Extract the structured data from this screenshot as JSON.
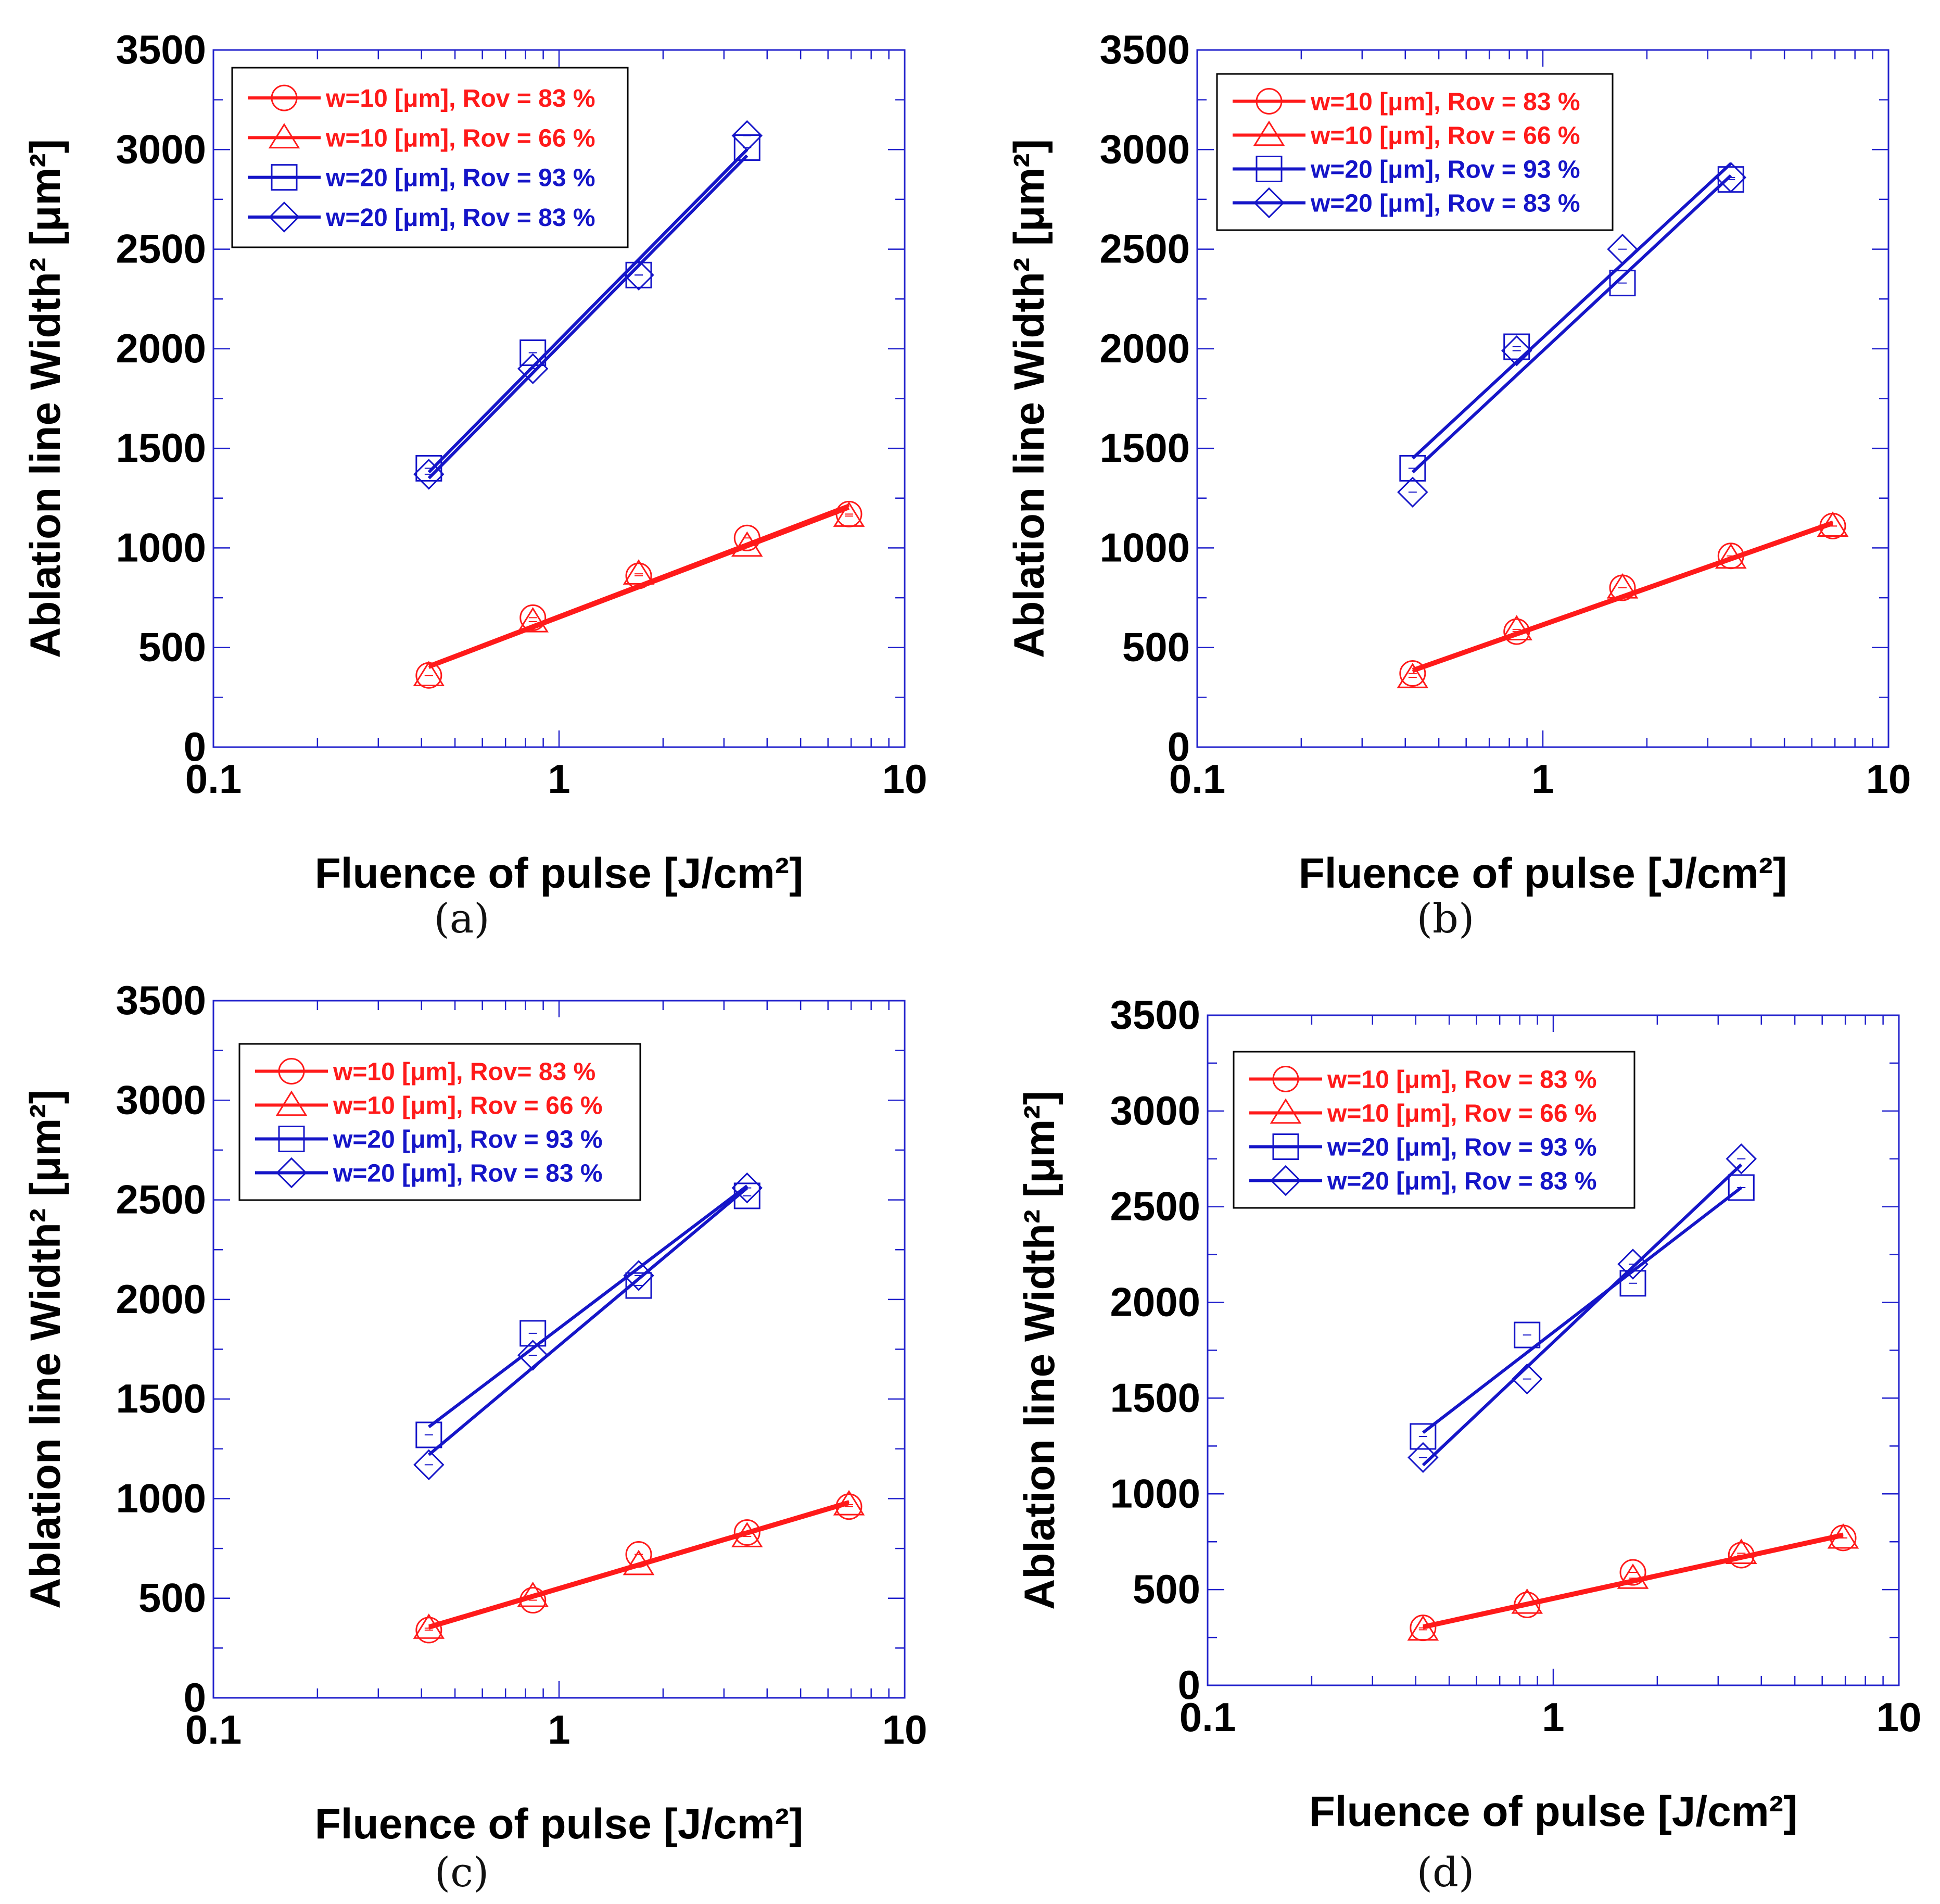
{
  "figure": {
    "captions": [
      "(a)",
      "(b)",
      "(c)",
      "(d)"
    ]
  },
  "colors": {
    "red": "#ff1a1a",
    "blue": "#1515c8",
    "frame": "#2222cc",
    "text": "#000000"
  },
  "chart_data": [
    {
      "panel": "(a)",
      "type": "scatter",
      "xscale": "log",
      "xlim": [
        0.1,
        10
      ],
      "ylim": [
        0,
        3500
      ],
      "xticks": [
        "0.1",
        "1",
        "10"
      ],
      "yticks": [
        "0",
        "500",
        "1000",
        "1500",
        "2000",
        "2500",
        "3000",
        "3500"
      ],
      "xlabel": "Fluence of pulse [J/cm²]",
      "ylabel": "Ablation line Width² [μm²]",
      "legend": [
        "w=10 [μm], Rov = 83 %",
        "w=10 [μm], Rov = 66 %",
        "w=20 [μm], Rov = 93 %",
        "w=20 [μm], Rov = 83 %"
      ],
      "series": [
        {
          "name": "w=10 [μm], Rov = 83 %",
          "color": "red",
          "marker": "circle",
          "x": [
            0.42,
            0.84,
            1.7,
            3.5,
            6.9
          ],
          "y": [
            360,
            650,
            860,
            1050,
            1170
          ],
          "fit": {
            "x": [
              0.42,
              6.9
            ],
            "y": [
              410,
              1215
            ]
          }
        },
        {
          "name": "w=10 [μm], Rov = 66 %",
          "color": "red",
          "marker": "triangle",
          "x": [
            0.42,
            0.84,
            1.7,
            3.5,
            6.9
          ],
          "y": [
            360,
            630,
            870,
            1010,
            1160
          ],
          "fit": {
            "x": [
              0.42,
              6.9
            ],
            "y": [
              400,
              1200
            ]
          }
        },
        {
          "name": "w=20 [μm], Rov = 93 %",
          "color": "blue",
          "marker": "square",
          "x": [
            0.42,
            0.84,
            1.7,
            3.5
          ],
          "y": [
            1400,
            1980,
            2370,
            3010
          ],
          "fit": {
            "x": [
              0.42,
              3.5
            ],
            "y": [
              1380,
              3000
            ]
          }
        },
        {
          "name": "w=20 [μm], Rov = 83 %",
          "color": "blue",
          "marker": "diamond",
          "x": [
            0.42,
            0.84,
            1.7,
            3.5
          ],
          "y": [
            1370,
            1900,
            2370,
            3070
          ],
          "fit": {
            "x": [
              0.42,
              3.5
            ],
            "y": [
              1350,
              2970
            ]
          }
        }
      ]
    },
    {
      "panel": "(b)",
      "type": "scatter",
      "xscale": "log",
      "xlim": [
        0.1,
        10
      ],
      "ylim": [
        0,
        3500
      ],
      "xticks": [
        "0.1",
        "1",
        "10"
      ],
      "yticks": [
        "0",
        "500",
        "1000",
        "1500",
        "2000",
        "2500",
        "3000",
        "3500"
      ],
      "xlabel": "Fluence of pulse [J/cm²]",
      "ylabel": "Ablation line Width² [μm²]",
      "legend": [
        "w=10 [μm], Rov = 83 %",
        "w=10 [μm], Rov = 66 %",
        "w=20 [μm], Rov = 93 %",
        "w=20 [μm], Rov = 83 %"
      ],
      "series": [
        {
          "name": "w=10 [μm], Rov = 83 %",
          "color": "red",
          "marker": "circle",
          "x": [
            0.42,
            0.84,
            1.7,
            3.5,
            6.9
          ],
          "y": [
            370,
            580,
            800,
            960,
            1110
          ],
          "fit": {
            "x": [
              0.42,
              6.9
            ],
            "y": [
              390,
              1130
            ]
          }
        },
        {
          "name": "w=10 [μm], Rov = 66 %",
          "color": "red",
          "marker": "triangle",
          "x": [
            0.42,
            0.84,
            1.7,
            3.5,
            6.9
          ],
          "y": [
            350,
            590,
            800,
            950,
            1110
          ],
          "fit": {
            "x": [
              0.42,
              6.9
            ],
            "y": [
              380,
              1120
            ]
          }
        },
        {
          "name": "w=20 [μm], Rov = 93 %",
          "color": "blue",
          "marker": "square",
          "x": [
            0.42,
            0.84,
            1.7,
            3.5
          ],
          "y": [
            1400,
            2010,
            2330,
            2850
          ],
          "fit": {
            "x": [
              0.42,
              3.5
            ],
            "y": [
              1450,
              2930
            ]
          }
        },
        {
          "name": "w=20 [μm], Rov = 83 %",
          "color": "blue",
          "marker": "diamond",
          "x": [
            0.42,
            0.84,
            1.7,
            3.5
          ],
          "y": [
            1280,
            1990,
            2500,
            2860
          ],
          "fit": {
            "x": [
              0.42,
              3.5
            ],
            "y": [
              1380,
              2870
            ]
          }
        }
      ]
    },
    {
      "panel": "(c)",
      "type": "scatter",
      "xscale": "log",
      "xlim": [
        0.1,
        10
      ],
      "ylim": [
        0,
        3500
      ],
      "xticks": [
        "0.1",
        "1",
        "10"
      ],
      "yticks": [
        "0",
        "500",
        "1000",
        "1500",
        "2000",
        "2500",
        "3000",
        "3500"
      ],
      "xlabel": "Fluence of pulse [J/cm²]",
      "ylabel": "Ablation line Width² [μm²]",
      "legend": [
        "w=10 [μm], Rov= 83 %",
        "w=10 [μm], Rov = 66 %",
        "w=20 [μm], Rov = 93 %",
        "w=20 [μm], Rov = 83 %"
      ],
      "series": [
        {
          "name": "w=10 [μm], Rov= 83 %",
          "color": "red",
          "marker": "circle",
          "x": [
            0.42,
            0.84,
            1.7,
            3.5,
            6.9
          ],
          "y": [
            340,
            490,
            720,
            830,
            960
          ],
          "fit": {
            "x": [
              0.42,
              6.9
            ],
            "y": [
              350,
              975
            ]
          }
        },
        {
          "name": "w=10 [μm], Rov = 66 %",
          "color": "red",
          "marker": "triangle",
          "x": [
            0.42,
            0.84,
            1.7,
            3.5,
            6.9
          ],
          "y": [
            350,
            510,
            670,
            810,
            970
          ],
          "fit": {
            "x": [
              0.42,
              6.9
            ],
            "y": [
              360,
              985
            ]
          }
        },
        {
          "name": "w=20 [μm], Rov = 93 %",
          "color": "blue",
          "marker": "square",
          "x": [
            0.42,
            0.84,
            1.7,
            3.5
          ],
          "y": [
            1320,
            1830,
            2070,
            2520
          ],
          "fit": {
            "x": [
              0.42,
              3.5
            ],
            "y": [
              1360,
              2570
            ]
          }
        },
        {
          "name": "w=20 [μm], Rov = 83 %",
          "color": "blue",
          "marker": "diamond",
          "x": [
            0.42,
            0.84,
            1.7,
            3.5
          ],
          "y": [
            1170,
            1720,
            2120,
            2560
          ],
          "fit": {
            "x": [
              0.42,
              3.5
            ],
            "y": [
              1220,
              2560
            ]
          }
        }
      ]
    },
    {
      "panel": "(d)",
      "type": "scatter",
      "xscale": "log",
      "xlim": [
        0.1,
        10
      ],
      "ylim": [
        0,
        3500
      ],
      "xticks": [
        "0.1",
        "1",
        "10"
      ],
      "yticks": [
        "0",
        "500",
        "1000",
        "1500",
        "2000",
        "2500",
        "3000",
        "3500"
      ],
      "xlabel": "Fluence of pulse [J/cm²]",
      "ylabel": "Ablation line Width² [μm²]",
      "legend": [
        "w=10 [μm], Rov = 83 %",
        "w=10 [μm], Rov = 66 %",
        "w=20 [μm], Rov = 93 %",
        "w=20 [μm], Rov = 83 %"
      ],
      "series": [
        {
          "name": "w=10 [μm], Rov = 83 %",
          "color": "red",
          "marker": "circle",
          "x": [
            0.42,
            0.84,
            1.7,
            3.5,
            6.9
          ],
          "y": [
            300,
            420,
            590,
            680,
            770
          ],
          "fit": {
            "x": [
              0.42,
              6.9
            ],
            "y": [
              310,
              790
            ]
          }
        },
        {
          "name": "w=10 [μm], Rov = 66 %",
          "color": "red",
          "marker": "triangle",
          "x": [
            0.42,
            0.84,
            1.7,
            3.5,
            6.9
          ],
          "y": [
            290,
            430,
            560,
            690,
            770
          ],
          "fit": {
            "x": [
              0.42,
              6.9
            ],
            "y": [
              300,
              780
            ]
          }
        },
        {
          "name": "w=20 [μm], Rov = 93 %",
          "color": "blue",
          "marker": "square",
          "x": [
            0.42,
            0.84,
            1.7,
            3.5
          ],
          "y": [
            1300,
            1830,
            2100,
            2600
          ],
          "fit": {
            "x": [
              0.42,
              3.5
            ],
            "y": [
              1320,
              2600
            ]
          }
        },
        {
          "name": "w=20 [μm], Rov = 83 %",
          "color": "blue",
          "marker": "diamond",
          "x": [
            0.42,
            0.84,
            1.7,
            3.5
          ],
          "y": [
            1190,
            1600,
            2200,
            2750
          ],
          "fit": {
            "x": [
              0.42,
              3.5
            ],
            "y": [
              1150,
              2720
            ]
          }
        }
      ]
    }
  ]
}
